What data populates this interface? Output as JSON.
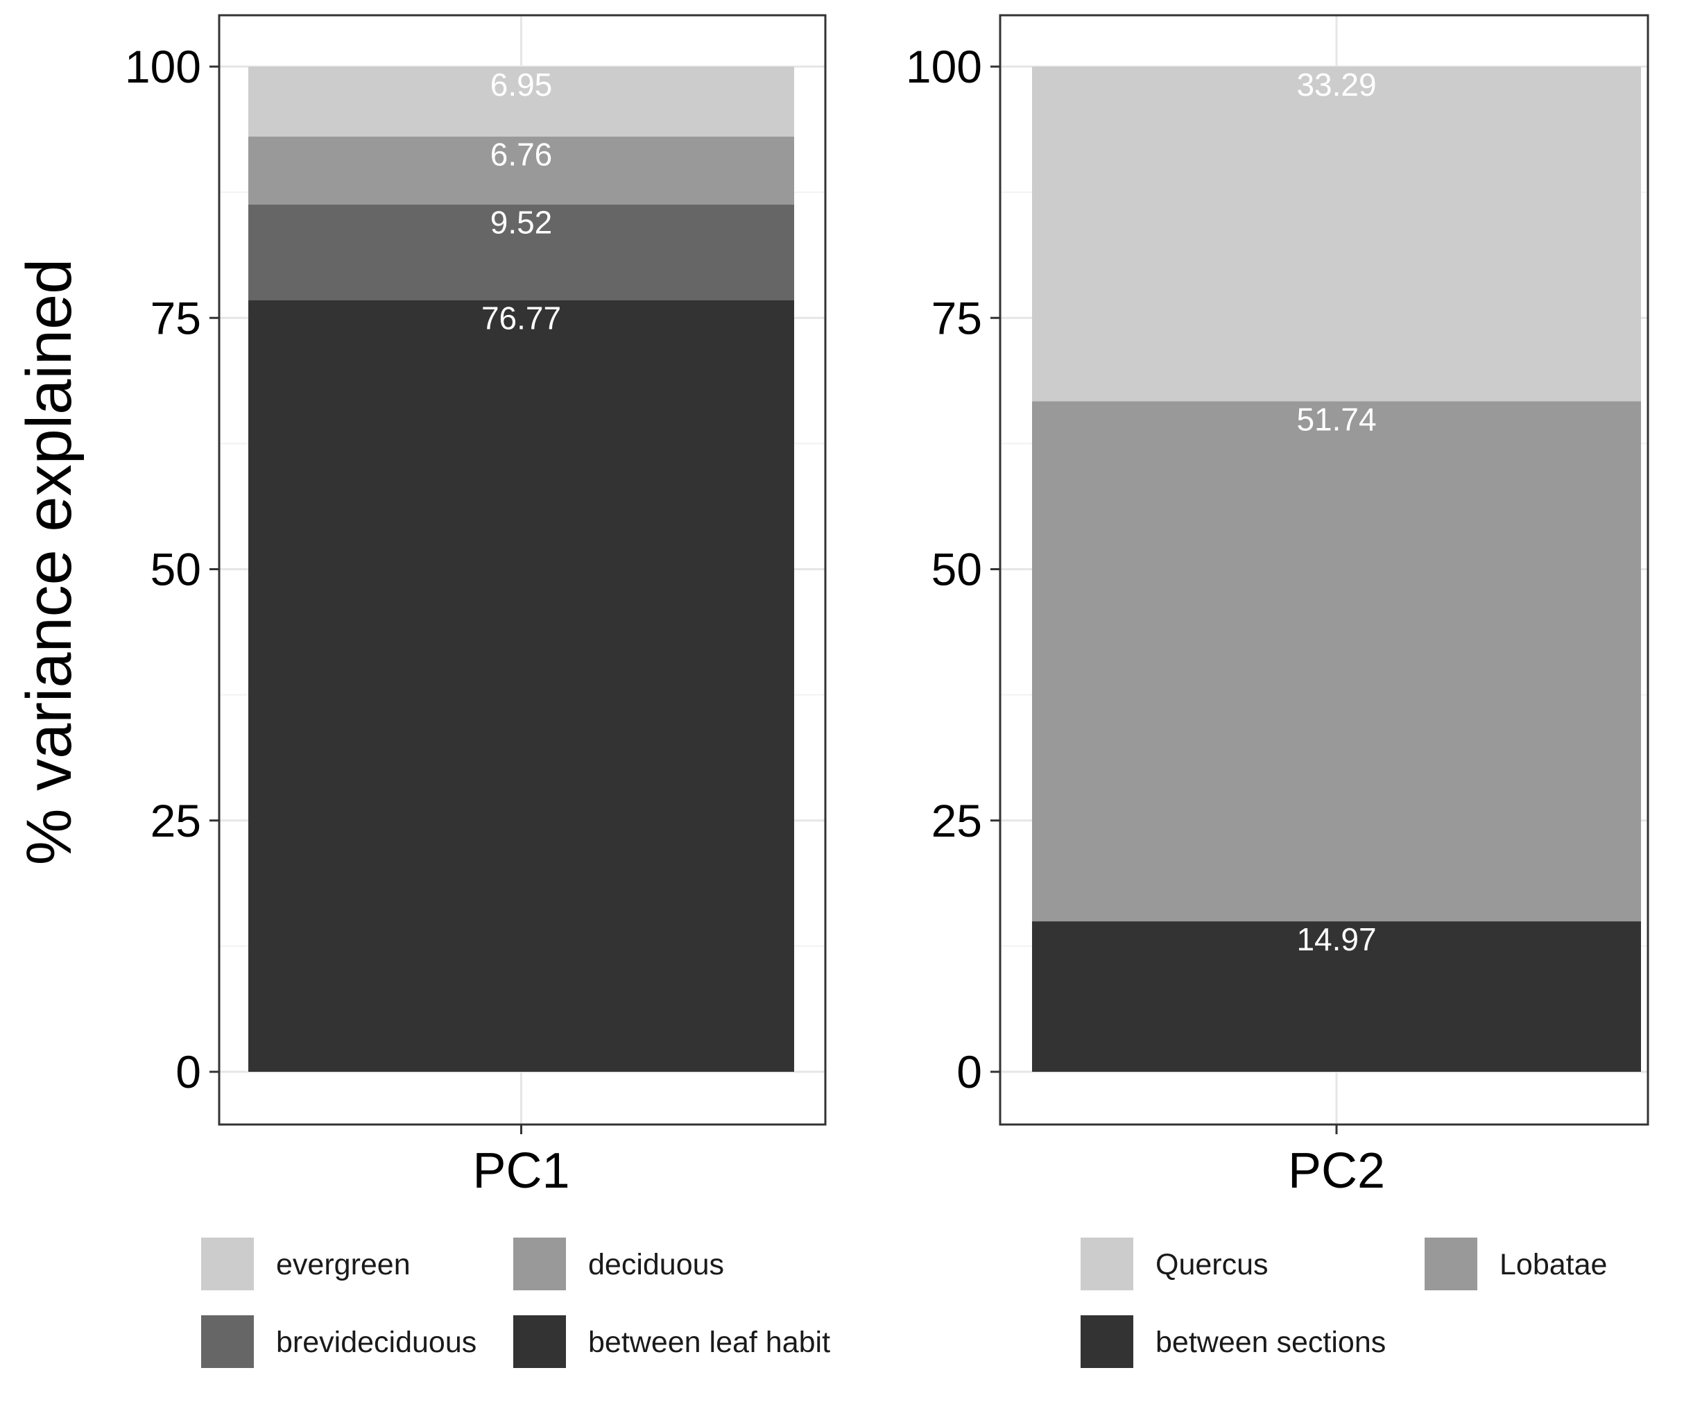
{
  "ylabel": "% variance explained",
  "y_ticks": [
    "0",
    "25",
    "50",
    "75",
    "100"
  ],
  "chart_data": [
    {
      "type": "bar",
      "stacked": true,
      "categories": [
        "PC1"
      ],
      "ylabel": "% variance explained",
      "ylim": [
        0,
        100
      ],
      "y_ticks": [
        0,
        25,
        50,
        75,
        100
      ],
      "grid": true,
      "legend_position": "bottom",
      "series": [
        {
          "name": "between leaf habit",
          "values": [
            76.77
          ],
          "label": "76.77",
          "color": "#333333"
        },
        {
          "name": "brevideciduous",
          "values": [
            9.52
          ],
          "label": "9.52",
          "color": "#666666"
        },
        {
          "name": "deciduous",
          "values": [
            6.76
          ],
          "label": "6.76",
          "color": "#999999"
        },
        {
          "name": "evergreen",
          "values": [
            6.95
          ],
          "label": "6.95",
          "color": "#cccccc"
        }
      ],
      "legend_order": [
        "evergreen",
        "deciduous",
        "brevideciduous",
        "between leaf habit"
      ]
    },
    {
      "type": "bar",
      "stacked": true,
      "categories": [
        "PC2"
      ],
      "ylim": [
        0,
        100
      ],
      "y_ticks": [
        0,
        25,
        50,
        75,
        100
      ],
      "grid": true,
      "legend_position": "bottom",
      "series": [
        {
          "name": "between sections",
          "values": [
            14.97
          ],
          "label": "14.97",
          "color": "#333333"
        },
        {
          "name": "Lobatae",
          "values": [
            51.74
          ],
          "label": "51.74",
          "color": "#999999"
        },
        {
          "name": "Quercus",
          "values": [
            33.29
          ],
          "label": "33.29",
          "color": "#cccccc"
        }
      ],
      "legend_order": [
        "Quercus",
        "Lobatae",
        "between sections"
      ]
    }
  ]
}
